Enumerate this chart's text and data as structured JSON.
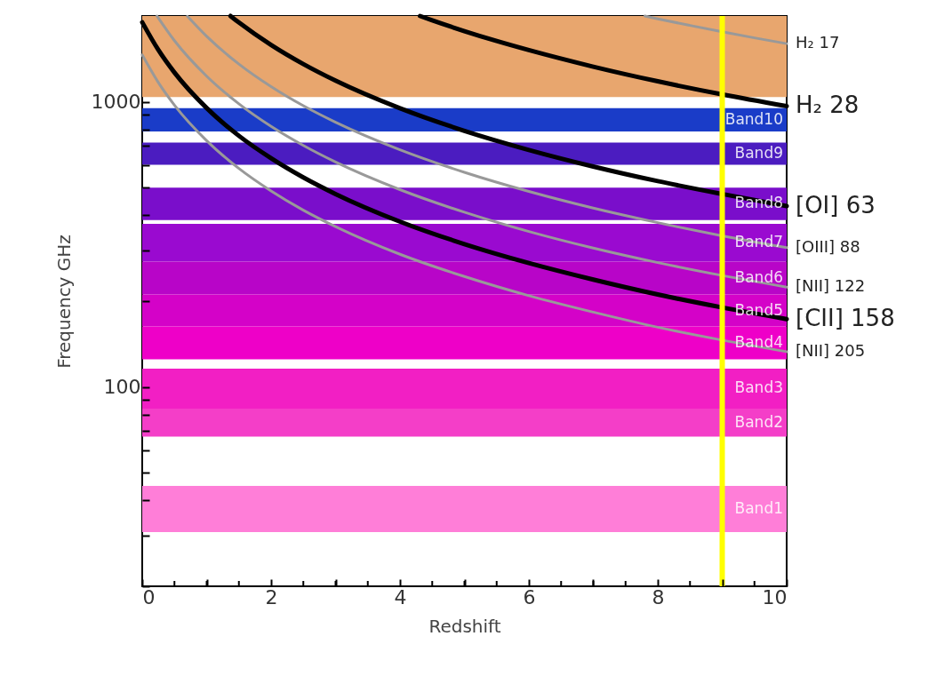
{
  "chart_data": {
    "type": "line",
    "xlabel": "Redshift",
    "ylabel": "Frequency GHz",
    "log": "y",
    "grid": false,
    "line_style": "solid",
    "marker": "none",
    "xlim": [
      0,
      10
    ],
    "ylim": [
      20,
      2000
    ],
    "xticks": [
      0,
      {
        "value": 0.5,
        "label": null
      },
      {
        "value": 1,
        "label": null
      },
      {
        "value": 1.5,
        "label": null
      },
      2,
      {
        "value": 2.5,
        "label": null
      },
      {
        "value": 3,
        "label": null
      },
      {
        "value": 3.5,
        "label": null
      },
      4,
      {
        "value": 4.5,
        "label": null
      },
      {
        "value": 5,
        "label": null
      },
      {
        "value": 5.5,
        "label": null
      },
      6,
      {
        "value": 6.5,
        "label": null
      },
      {
        "value": 7,
        "label": null
      },
      {
        "value": 7.5,
        "label": null
      },
      8,
      {
        "value": 8.5,
        "label": null
      },
      {
        "value": 9,
        "label": null
      },
      {
        "value": 9.5,
        "label": null
      },
      10
    ],
    "yticks": [
      {
        "value": 20,
        "label": null
      },
      {
        "value": 30,
        "label": null
      },
      {
        "value": 40,
        "label": null
      },
      {
        "value": 50,
        "label": null
      },
      {
        "value": 60,
        "label": null
      },
      {
        "value": 70,
        "label": null
      },
      {
        "value": 80,
        "label": null
      },
      {
        "value": 90,
        "label": null
      },
      100,
      {
        "value": 200,
        "label": null
      },
      {
        "value": 300,
        "label": null
      },
      {
        "value": 400,
        "label": null
      },
      {
        "value": 500,
        "label": null
      },
      {
        "value": 600,
        "label": null
      },
      {
        "value": 700,
        "label": null
      },
      {
        "value": 800,
        "label": null
      },
      {
        "value": 900,
        "label": null
      },
      1000
    ],
    "series": [
      {
        "name": "H₂ 17",
        "color": "#999999",
        "x": [
          7.8,
          8,
          8.5,
          9,
          9.5,
          10
        ],
        "values": [
          2000,
          1955,
          1853,
          1760,
          1676,
          1600
        ]
      },
      {
        "name": "H₂ 28",
        "color": "#000000",
        "x": [
          4.31,
          4.5,
          5,
          5.5,
          6,
          7,
          8,
          9,
          10
        ],
        "values": [
          2000,
          1931,
          1770,
          1634,
          1518,
          1328,
          1180,
          1062,
          966
        ]
      },
      {
        "name": "[OI] 63",
        "color": "#000000",
        "x": [
          1.37,
          1.5,
          2,
          2.5,
          3,
          4,
          5,
          6,
          7,
          8,
          9,
          10
        ],
        "values": [
          2000,
          1898,
          1582,
          1356,
          1186,
          949,
          791,
          678,
          593,
          527,
          475,
          431
        ]
      },
      {
        "name": "[OIII] 88",
        "color": "#999999",
        "x": [
          0.7,
          1,
          1.5,
          2,
          2.5,
          3,
          4,
          5,
          6,
          7,
          8,
          9,
          10
        ],
        "values": [
          1996,
          1697,
          1357,
          1131,
          969,
          848,
          679,
          566,
          485,
          424,
          377,
          339,
          308
        ]
      },
      {
        "name": "[NII] 122",
        "color": "#999999",
        "x": [
          0.23,
          0.5,
          1,
          1.5,
          2,
          2.5,
          3,
          4,
          5,
          6,
          7,
          8,
          9,
          10
        ],
        "values": [
          1999,
          1639,
          1230,
          984,
          820,
          703,
          615,
          492,
          410,
          351,
          307,
          273,
          246,
          224
        ]
      },
      {
        "name": "[CII] 158",
        "color": "#000000",
        "x": [
          0,
          0.25,
          0.5,
          1,
          1.5,
          2,
          2.5,
          3,
          4,
          5,
          6,
          7,
          8,
          9,
          10
        ],
        "values": [
          1901,
          1521,
          1267,
          951,
          760,
          634,
          543,
          475,
          380,
          317,
          272,
          238,
          211,
          190,
          173
        ]
      },
      {
        "name": "[NII] 205",
        "color": "#999999",
        "x": [
          0,
          0.25,
          0.5,
          1,
          1.5,
          2,
          2.5,
          3,
          4,
          5,
          6,
          7,
          8,
          9,
          10
        ],
        "values": [
          1461,
          1169,
          974,
          731,
          584,
          487,
          417,
          365,
          292,
          244,
          209,
          183,
          162,
          146,
          133
        ]
      }
    ],
    "bands": [
      {
        "axis": "y",
        "from": 1040,
        "to": 2000,
        "color": "#e8a66e"
      },
      {
        "axis": "y",
        "from": 787,
        "to": 950,
        "label": "Band10",
        "color": "#1a3cc8"
      },
      {
        "axis": "y",
        "from": 602,
        "to": 720,
        "label": "Band9",
        "color": "#4b1cc0"
      },
      {
        "axis": "y",
        "from": 385,
        "to": 500,
        "label": "Band8",
        "color": "#7a0ecb"
      },
      {
        "axis": "y",
        "from": 275,
        "to": 373,
        "label": "Band7",
        "color": "#9a0ad0"
      },
      {
        "axis": "y",
        "from": 211,
        "to": 275,
        "label": "Band6",
        "color": "#b805c8"
      },
      {
        "axis": "y",
        "from": 163,
        "to": 211,
        "label": "Band5",
        "color": "#d402c8"
      },
      {
        "axis": "y",
        "from": 125,
        "to": 163,
        "label": "Band4",
        "color": "#ee00c8"
      },
      {
        "axis": "y",
        "from": 84,
        "to": 116,
        "label": "Band3",
        "color": "#f21fc4"
      },
      {
        "axis": "y",
        "from": 67,
        "to": 84,
        "label": "Band2",
        "color": "#f43ec8"
      },
      {
        "axis": "y",
        "from": 31,
        "to": 45,
        "label": "Band1",
        "color": "#ff7ed8"
      }
    ],
    "ref_lines": [
      {
        "axis": "x",
        "value": 9,
        "color": "#ffff00"
      }
    ]
  }
}
